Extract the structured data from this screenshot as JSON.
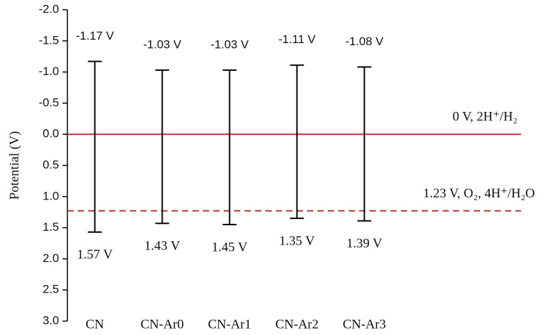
{
  "chart_data": {
    "type": "range",
    "y_label": "Potential (V)",
    "categories": [
      "CN",
      "CN-Ar0",
      "CN-Ar1",
      "CN-Ar2",
      "CN-Ar3"
    ],
    "conduction_band": {
      "values": [
        -1.17,
        -1.03,
        -1.03,
        -1.11,
        -1.08
      ],
      "value_labels": [
        "-1.17 V",
        "-1.03 V",
        "-1.03 V",
        "-1.11 V",
        "-1.08 V"
      ]
    },
    "valence_band": {
      "values": [
        1.57,
        1.43,
        1.45,
        1.35,
        1.39
      ],
      "value_labels": [
        "1.57 V",
        "1.43 V",
        "1.45 V",
        "1.35 V",
        "1.39 V"
      ]
    },
    "color": "#000000",
    "ylim": [
      -2,
      3
    ],
    "y_reversed": true,
    "yticks": [
      {
        "value": -2,
        "label": "-2.0"
      },
      {
        "value": -1.5,
        "label": "-1.5"
      },
      {
        "value": -1,
        "label": "-1.0"
      },
      {
        "value": -0.5,
        "label": "-0.5"
      },
      {
        "value": 0,
        "label": "0.0"
      },
      {
        "value": 0.5,
        "label": "0.5"
      },
      {
        "value": 1,
        "label": "1.0"
      },
      {
        "value": 1.5,
        "label": "1.5"
      },
      {
        "value": 2,
        "label": "2.0"
      },
      {
        "value": 2.5,
        "label": "2.5"
      },
      {
        "value": 3,
        "label": "3.0"
      }
    ],
    "reference_lines": [
      {
        "value": 0,
        "label": "0 V, 2H⁺/H₂",
        "style": "solid",
        "color": "#c0302b"
      },
      {
        "value": 1.23,
        "label": "1.23 V, O₂, 4H⁺/H₂O",
        "style": "dashed",
        "color": "#c0302b"
      }
    ]
  }
}
